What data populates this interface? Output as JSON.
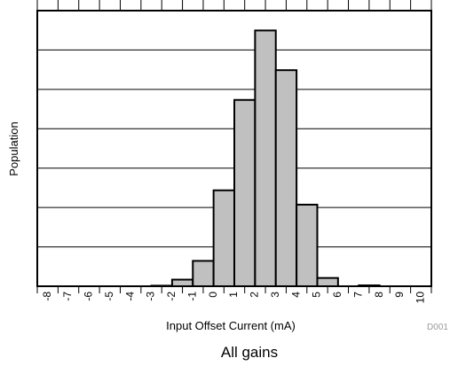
{
  "chart_data": {
    "type": "bar",
    "categories": [
      "-8",
      "-7",
      "-6",
      "-5",
      "-4",
      "-3",
      "-2",
      "-1",
      "0",
      "1",
      "2",
      "3",
      "4",
      "5",
      "6",
      "7",
      "8",
      "9",
      "10"
    ],
    "bins": [
      {
        "x0": -3,
        "x1": -2,
        "value": 0.05
      },
      {
        "x0": -2,
        "x1": -1,
        "value": 0.6
      },
      {
        "x0": -1,
        "x1": 0,
        "value": 2.3
      },
      {
        "x0": 0,
        "x1": 1,
        "value": 8.7
      },
      {
        "x0": 1,
        "x1": 2,
        "value": 16.9
      },
      {
        "x0": 2,
        "x1": 3,
        "value": 23.2
      },
      {
        "x0": 3,
        "x1": 4,
        "value": 19.6
      },
      {
        "x0": 4,
        "x1": 5,
        "value": 7.4
      },
      {
        "x0": 5,
        "x1": 6,
        "value": 0.75
      },
      {
        "x0": 7,
        "x1": 8,
        "value": 0.08
      }
    ],
    "xlabel": "Input Offset Current (mA)",
    "ylabel": "Population",
    "xlim": [
      -8.5,
      10.5
    ],
    "ylim": [
      0,
      25
    ],
    "y_gridlines": [
      3.57,
      7.14,
      10.71,
      14.29,
      17.86,
      21.43
    ],
    "grid": true,
    "bar_color": "#c0c0c0",
    "caption": "All gains",
    "figure_code": "D001"
  }
}
